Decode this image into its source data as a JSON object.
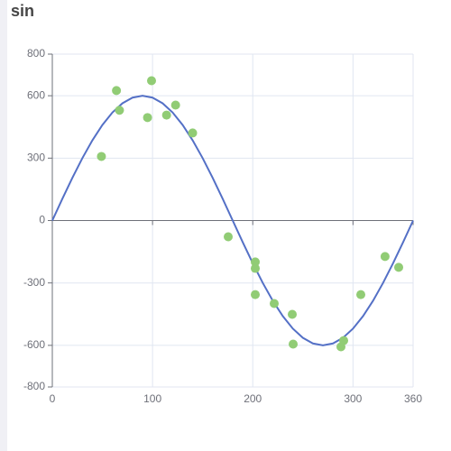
{
  "chart_data": {
    "type": "scatter",
    "title": "sin",
    "xlim": [
      0,
      360
    ],
    "xticks": [
      0,
      100,
      200,
      300,
      360
    ],
    "ylim": [
      -800,
      800
    ],
    "yticks": [
      -800,
      -600,
      -300,
      0,
      300,
      600,
      800
    ],
    "grid": true,
    "series": [
      {
        "type": "line",
        "color": "#5470c6",
        "x": [
          0,
          10,
          20,
          30,
          40,
          50,
          60,
          70,
          80,
          90,
          100,
          110,
          120,
          130,
          140,
          150,
          160,
          170,
          180,
          190,
          200,
          210,
          220,
          230,
          240,
          250,
          260,
          270,
          280,
          290,
          300,
          310,
          320,
          330,
          340,
          350,
          360
        ],
        "values": [
          0,
          104.2,
          205.2,
          300,
          385.7,
          459.6,
          519.6,
          563.8,
          590.9,
          600,
          590.9,
          563.8,
          519.6,
          459.6,
          385.7,
          300,
          205.2,
          104.2,
          0,
          -104.2,
          -205.2,
          -300,
          -385.7,
          -459.6,
          -519.6,
          -563.8,
          -590.9,
          -600,
          -590.9,
          -563.8,
          -519.6,
          -459.6,
          -385.7,
          -300,
          -205.2,
          -104.2,
          0
        ]
      },
      {
        "type": "scatter",
        "color": "#91cc75",
        "x": [
          49,
          64,
          67,
          95,
          99,
          114,
          123,
          140,
          175.5,
          202.5,
          202.5,
          202.5,
          221.4,
          239.4,
          240.3,
          288,
          290.7,
          307.8,
          332,
          345.6
        ],
        "values": [
          308,
          625,
          530,
          495,
          672,
          507,
          555,
          421,
          -78,
          -199,
          -230,
          -356,
          -399,
          -451,
          -594,
          -607,
          -577,
          -356,
          -173,
          -225
        ]
      }
    ]
  }
}
